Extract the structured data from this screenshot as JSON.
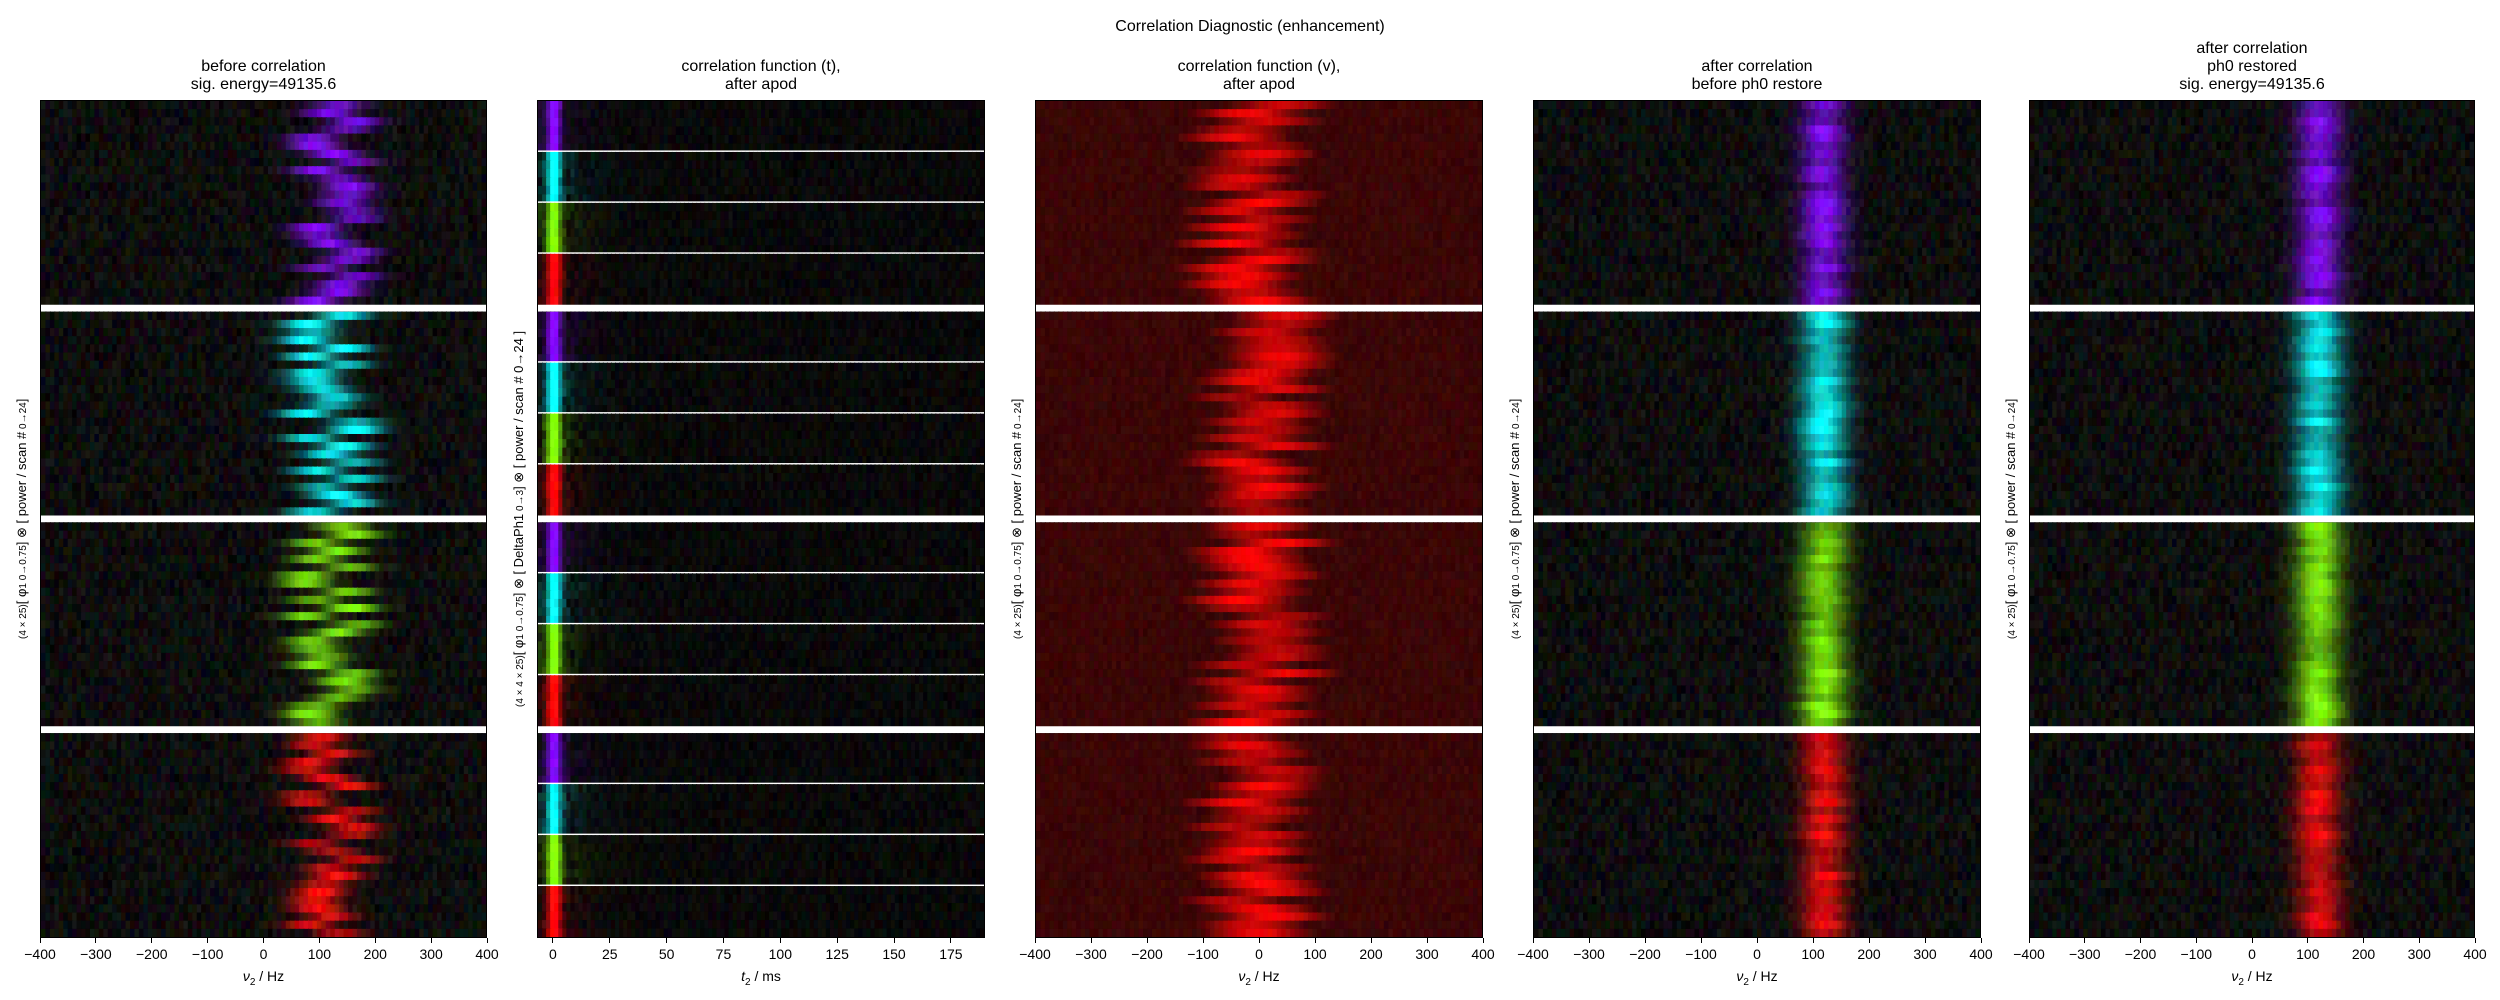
{
  "figure": {
    "suptitle": "Correlation Diagnostic (enhancement)"
  },
  "panels": [
    {
      "id": "p1",
      "title": "before correlation\nsig. energy=49135.6",
      "xlabel_var": "ν",
      "xlabel_sub": "2",
      "xlabel_unit": " / Hz",
      "ylabel_prefix": "(4 × 25)",
      "ylabel_main": "[ φ",
      "ylabel_sub1": "1 0→0.75",
      "ylabel_mid": "] ⊗ [ power / scan #",
      "ylabel_sub2": " 0→24",
      "ylabel_end": "]",
      "xticks": [
        "−400",
        "−300",
        "−200",
        "−100",
        "0",
        "100",
        "200",
        "300",
        "400"
      ]
    },
    {
      "id": "p2",
      "title": "correlation function (t),\nafter apod",
      "xlabel_var": "t",
      "xlabel_sub": "2",
      "xlabel_unit": " / ms",
      "ylabel_prefix": "(4 × 4 × 25)",
      "ylabel_main": "[ φ",
      "ylabel_sub1": "1 0→0.75",
      "ylabel_mid": "] ⊗ [ DeltaPh1",
      "ylabel_sub2": " 0→3",
      "ylabel_end": "] ⊗ [ power / scan # 0→24 ]",
      "xticks": [
        "0",
        "25",
        "50",
        "75",
        "100",
        "125",
        "150",
        "175"
      ]
    },
    {
      "id": "p3",
      "title": "correlation function (v),\nafter apod",
      "xlabel_var": "ν",
      "xlabel_sub": "2",
      "xlabel_unit": " / Hz",
      "ylabel_prefix": "(4 × 25)",
      "ylabel_main": "[ φ",
      "ylabel_sub1": "1 0→0.75",
      "ylabel_mid": "] ⊗ [ power / scan #",
      "ylabel_sub2": " 0→24",
      "ylabel_end": "]",
      "xticks": [
        "−400",
        "−300",
        "−200",
        "−100",
        "0",
        "100",
        "200",
        "300",
        "400"
      ]
    },
    {
      "id": "p4",
      "title": "after correlation\nbefore ph0 restore",
      "xlabel_var": "ν",
      "xlabel_sub": "2",
      "xlabel_unit": " / Hz",
      "ylabel_prefix": "(4 × 25)",
      "ylabel_main": "[ φ",
      "ylabel_sub1": "1 0→0.75",
      "ylabel_mid": "] ⊗ [ power / scan #",
      "ylabel_sub2": " 0→24",
      "ylabel_end": "]",
      "xticks": [
        "−400",
        "−300",
        "−200",
        "−100",
        "0",
        "100",
        "200",
        "300",
        "400"
      ]
    },
    {
      "id": "p5",
      "title": "after correlation\nph0 restored\nsig. energy=49135.6",
      "xlabel_var": "ν",
      "xlabel_sub": "2",
      "xlabel_unit": " / Hz",
      "ylabel_prefix": "(4 × 25)",
      "ylabel_main": "[ φ",
      "ylabel_sub1": "1 0→0.75",
      "ylabel_mid": "] ⊗ [ power / scan #",
      "ylabel_sub2": " 0→24",
      "ylabel_end": "]",
      "xticks": [
        "−400",
        "−300",
        "−200",
        "−100",
        "0",
        "100",
        "200",
        "300",
        "400"
      ]
    }
  ],
  "chart_data": [
    {
      "type": "heatmap",
      "title": "before correlation / sig. energy=49135.6",
      "xlabel": "ν2 / Hz",
      "ylabel": "(4 × 25)[ φ1 0→0.75 ] ⊗ [ power / scan # 0→24 ]",
      "xlim": [
        -400,
        400
      ],
      "xticks": [
        -400,
        -300,
        -200,
        -100,
        0,
        100,
        200,
        300,
        400
      ],
      "blocks": [
        {
          "phi1": 0,
          "color": "#8000ff",
          "peak_center_hz": 120,
          "peak_jitter_hz": 50,
          "peak_width_hz": 45
        },
        {
          "phi1": 0.25,
          "color": "#00ffff",
          "peak_center_hz": 120,
          "peak_jitter_hz": 50,
          "peak_width_hz": 45
        },
        {
          "phi1": 0.5,
          "color": "#80ff00",
          "peak_center_hz": 120,
          "peak_jitter_hz": 50,
          "peak_width_hz": 45
        },
        {
          "phi1": 0.75,
          "color": "#ff0000",
          "peak_center_hz": 120,
          "peak_jitter_hz": 50,
          "peak_width_hz": 45
        }
      ],
      "rows_per_block": 25,
      "noise_level": 0.25,
      "separator": "thick"
    },
    {
      "type": "heatmap",
      "title": "correlation function (t), after apod",
      "xlabel": "t2 / ms",
      "ylabel": "(4 × 4 × 25)[ φ1 0→0.75 ] ⊗ [ DeltaPh1 0→3 ] ⊗ [ power / scan # 0→24 ]",
      "xlim": [
        -7,
        190
      ],
      "xticks": [
        0,
        25,
        50,
        75,
        100,
        125,
        150,
        175
      ],
      "blocks": [
        {
          "phi1": 0,
          "sub_colors": [
            "#8000ff",
            "#00ffff",
            "#80ff00",
            "#ff0000"
          ],
          "peak_center_ms": 0,
          "peak_width_ms": 3
        },
        {
          "phi1": 0.25,
          "sub_colors": [
            "#8000ff",
            "#00ffff",
            "#80ff00",
            "#ff0000"
          ],
          "peak_center_ms": 0,
          "peak_width_ms": 3
        },
        {
          "phi1": 0.5,
          "sub_colors": [
            "#8000ff",
            "#00ffff",
            "#80ff00",
            "#ff0000"
          ],
          "peak_center_ms": 0,
          "peak_width_ms": 3
        },
        {
          "phi1": 0.75,
          "sub_colors": [
            "#8000ff",
            "#00ffff",
            "#80ff00",
            "#ff0000"
          ],
          "peak_center_ms": 0,
          "peak_width_ms": 3
        }
      ],
      "rows_per_block": 25,
      "noise_level": 0.15,
      "separator": "thick + thin"
    },
    {
      "type": "heatmap",
      "title": "correlation function (v), after apod",
      "xlabel": "ν2 / Hz",
      "ylabel": "(4 × 25)[ φ1 0→0.75 ] ⊗ [ power / scan # 0→24 ]",
      "xlim": [
        -400,
        400
      ],
      "xticks": [
        -400,
        -300,
        -200,
        -100,
        0,
        100,
        200,
        300,
        400
      ],
      "blocks": [
        {
          "phi1": 0,
          "color": "#ff0000",
          "peak_center_hz": 0,
          "peak_jitter_hz": 50,
          "peak_width_hz": 90
        },
        {
          "phi1": 0.25,
          "color": "#ff0000",
          "peak_center_hz": 0,
          "peak_jitter_hz": 50,
          "peak_width_hz": 90
        },
        {
          "phi1": 0.5,
          "color": "#ff0000",
          "peak_center_hz": 0,
          "peak_jitter_hz": 50,
          "peak_width_hz": 90
        },
        {
          "phi1": 0.75,
          "color": "#ff0000",
          "peak_center_hz": 0,
          "peak_jitter_hz": 50,
          "peak_width_hz": 90
        }
      ],
      "rows_per_block": 25,
      "noise_level": 0.12,
      "separator": "thick"
    },
    {
      "type": "heatmap",
      "title": "after correlation / before ph0 restore",
      "xlabel": "ν2 / Hz",
      "ylabel": "(4 × 25)[ φ1 0→0.75 ] ⊗ [ power / scan # 0→24 ]",
      "xlim": [
        -400,
        400
      ],
      "xticks": [
        -400,
        -300,
        -200,
        -100,
        0,
        100,
        200,
        300,
        400
      ],
      "blocks": [
        {
          "phi1": 0,
          "color": "#8000ff",
          "peak_center_hz": 120,
          "peak_jitter_hz": 5,
          "peak_width_hz": 40
        },
        {
          "phi1": 0.25,
          "color": "#00ffff",
          "peak_center_hz": 120,
          "peak_jitter_hz": 5,
          "peak_width_hz": 40
        },
        {
          "phi1": 0.5,
          "color": "#80ff00",
          "peak_center_hz": 120,
          "peak_jitter_hz": 5,
          "peak_width_hz": 40
        },
        {
          "phi1": 0.75,
          "color": "#ff0000",
          "peak_center_hz": 120,
          "peak_jitter_hz": 5,
          "peak_width_hz": 40
        }
      ],
      "rows_per_block": 25,
      "noise_level": 0.25,
      "separator": "thick"
    },
    {
      "type": "heatmap",
      "title": "after correlation / ph0 restored / sig. energy=49135.6",
      "xlabel": "ν2 / Hz",
      "ylabel": "(4 × 25)[ φ1 0→0.75 ] ⊗ [ power / scan # 0→24 ]",
      "xlim": [
        -400,
        400
      ],
      "xticks": [
        -400,
        -300,
        -200,
        -100,
        0,
        100,
        200,
        300,
        400
      ],
      "blocks": [
        {
          "phi1": 0,
          "color": "#8000ff",
          "peak_center_hz": 120,
          "peak_jitter_hz": 5,
          "peak_width_hz": 40
        },
        {
          "phi1": 0.25,
          "color": "#00ffff",
          "peak_center_hz": 120,
          "peak_jitter_hz": 5,
          "peak_width_hz": 40
        },
        {
          "phi1": 0.5,
          "color": "#80ff00",
          "peak_center_hz": 120,
          "peak_jitter_hz": 5,
          "peak_width_hz": 40
        },
        {
          "phi1": 0.75,
          "color": "#ff0000",
          "peak_center_hz": 120,
          "peak_jitter_hz": 5,
          "peak_width_hz": 40
        }
      ],
      "rows_per_block": 25,
      "noise_level": 0.25,
      "separator": "thick"
    }
  ]
}
